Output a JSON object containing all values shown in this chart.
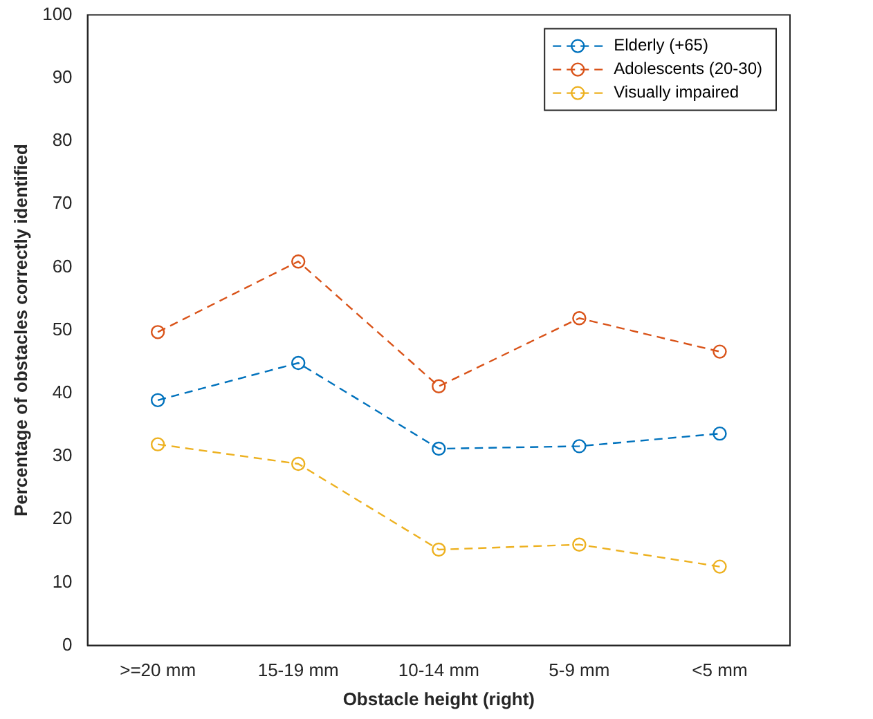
{
  "chart_data": {
    "type": "line",
    "xlabel": "Obstacle height (right)",
    "ylabel": "Percentage of obstacles correctly identified",
    "categories": [
      ">=20 mm",
      "15-19 mm",
      "10-14 mm",
      "5-9 mm",
      "<5 mm"
    ],
    "series": [
      {
        "name": "Elderly (+65)",
        "color": "#0072bd",
        "values": [
          38.9,
          44.8,
          31.2,
          31.6,
          33.6
        ]
      },
      {
        "name": "Adolescents (20-30)",
        "color": "#d95319",
        "values": [
          49.7,
          60.9,
          41.1,
          51.9,
          46.6
        ]
      },
      {
        "name": "Visually impaired",
        "color": "#edb120",
        "values": [
          31.9,
          28.8,
          15.2,
          16.0,
          12.5
        ]
      }
    ],
    "ylim": [
      0,
      100
    ],
    "yticks": [
      0,
      10,
      20,
      30,
      40,
      50,
      60,
      70,
      80,
      90,
      100
    ],
    "grid": false,
    "legend": "top right",
    "marker": "circle",
    "line_style": "dashed"
  }
}
